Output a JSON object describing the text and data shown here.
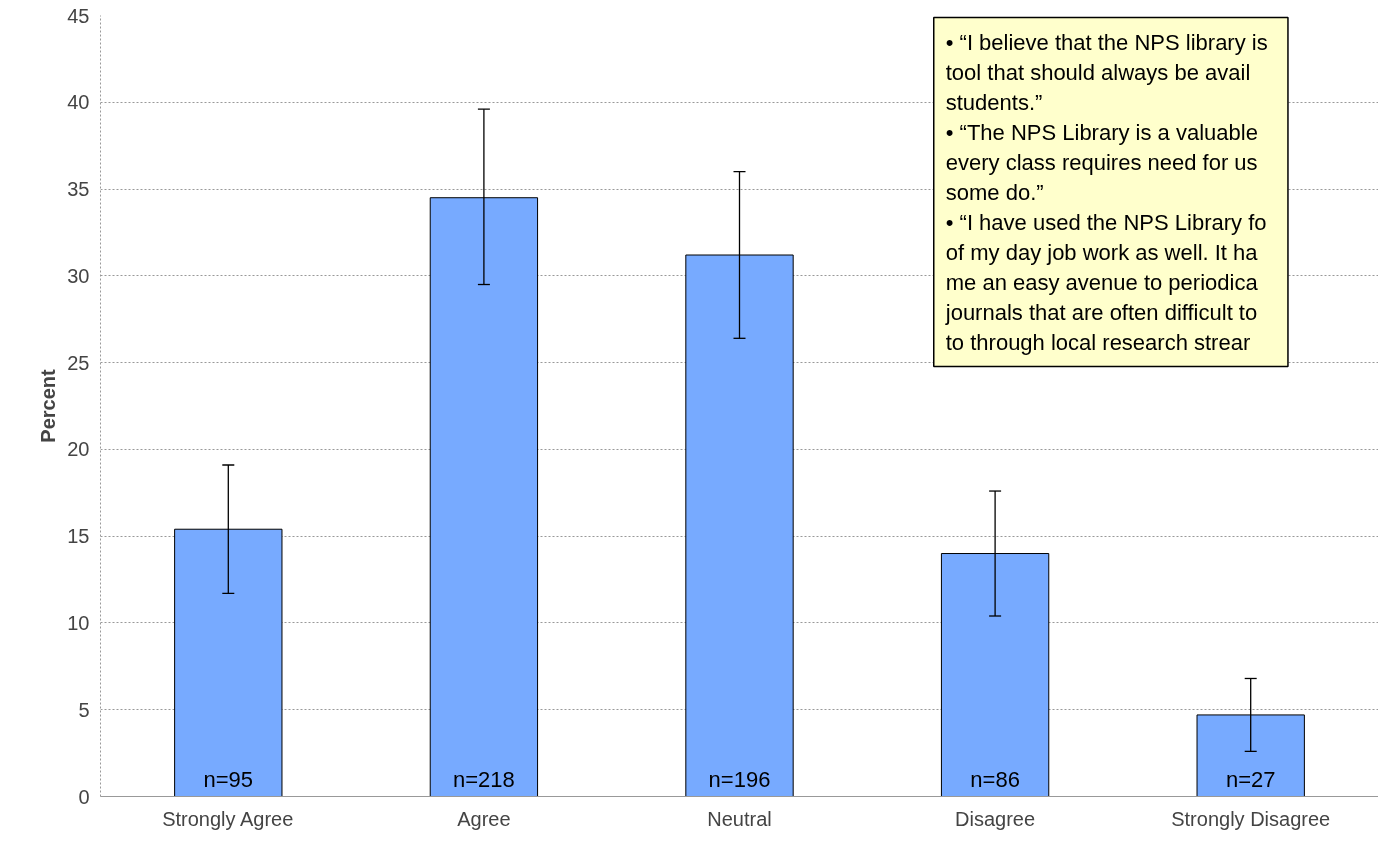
{
  "chart_data": {
    "type": "bar",
    "ylabel": "Percent",
    "categories": [
      "Strongly Agree",
      "Agree",
      "Neutral",
      "Disagree",
      "Strongly Disagree"
    ],
    "values": [
      15.4,
      34.5,
      31.2,
      14.0,
      4.7
    ],
    "color": "#77aaff",
    "errors": [
      [
        11.7,
        19.1
      ],
      [
        29.5,
        39.6
      ],
      [
        26.4,
        36.0
      ],
      [
        10.4,
        17.6
      ],
      [
        2.6,
        6.8
      ]
    ],
    "ylim": [
      0,
      45
    ],
    "yticks": [
      0,
      5,
      10,
      15,
      20,
      25,
      30,
      35,
      40,
      45
    ],
    "grid": "y",
    "annotations": [
      {
        "text": "n=95",
        "x": "Strongly Agree",
        "y": 0
      },
      {
        "text": "n=218",
        "x": "Agree",
        "y": 0
      },
      {
        "text": "n=196",
        "x": "Neutral",
        "y": 0
      },
      {
        "text": "n=86",
        "x": "Disagree",
        "y": 0
      },
      {
        "text": "n=27",
        "x": "Strongly Disagree",
        "y": 0
      },
      "• “I believe that the NPS library is\ntool that should always be avail\nstudents.”",
      "• “The NPS Library is a valuable\nevery class requires need for us\nsome do.”",
      "• “I have used the NPS Library fo\nof my day job work as well. It ha\nme an easy avenue to periodica\njournals that are often difficult to\nto through local research strear"
    ]
  }
}
